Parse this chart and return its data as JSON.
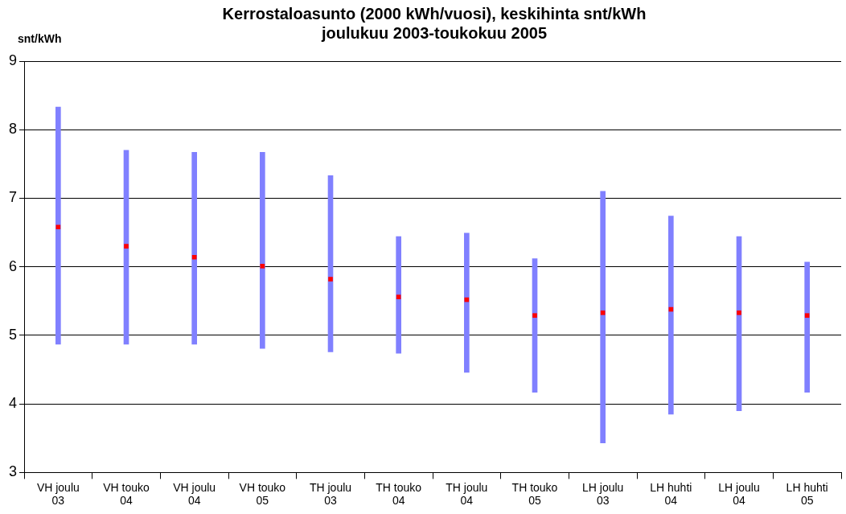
{
  "chart_data": {
    "type": "bar",
    "title": "Kerrostaloasunto (2000 kWh/vuosi), keskihinta snt/kWh\njoulukuu 2003-toukokuu 2005",
    "ylabel": "snt/kWh",
    "categories": [
      "VH joulu 03",
      "VH touko 04",
      "VH joulu 04",
      "VH touko 05",
      "TH joulu 03",
      "TH touko 04",
      "TH joulu 04",
      "TH touko 05",
      "LH joulu 03",
      "LH huhti 04",
      "LH joulu 04",
      "LH huhti 05"
    ],
    "series": [
      {
        "color": "#8080ff",
        "base": [
          4.87,
          4.87,
          4.87,
          4.81,
          4.76,
          4.74,
          4.46,
          4.17,
          3.43,
          3.85,
          3.9,
          4.17
        ],
        "values": [
          3.46,
          2.83,
          2.8,
          2.86,
          2.57,
          1.7,
          2.03,
          1.95,
          3.67,
          2.89,
          2.54,
          1.9
        ]
      },
      {
        "type": "scatter",
        "color": "#ff0000",
        "marker": "square",
        "x": [
          "VH joulu 03",
          "VH touko 04",
          "VH joulu 04",
          "VH touko 05",
          "TH joulu 03",
          "TH touko 04",
          "TH joulu 04",
          "TH touko 05",
          "LH joulu 03",
          "LH huhti 04",
          "LH joulu 04",
          "LH huhti 05"
        ],
        "values": [
          6.58,
          6.3,
          6.14,
          6.01,
          5.82,
          5.56,
          5.52,
          5.29,
          5.33,
          5.38,
          5.33,
          5.29
        ]
      }
    ],
    "ylim": [
      3,
      9
    ],
    "yticks": [
      3,
      4,
      5,
      6,
      7,
      8,
      9
    ],
    "grid": "y",
    "legend": false
  }
}
